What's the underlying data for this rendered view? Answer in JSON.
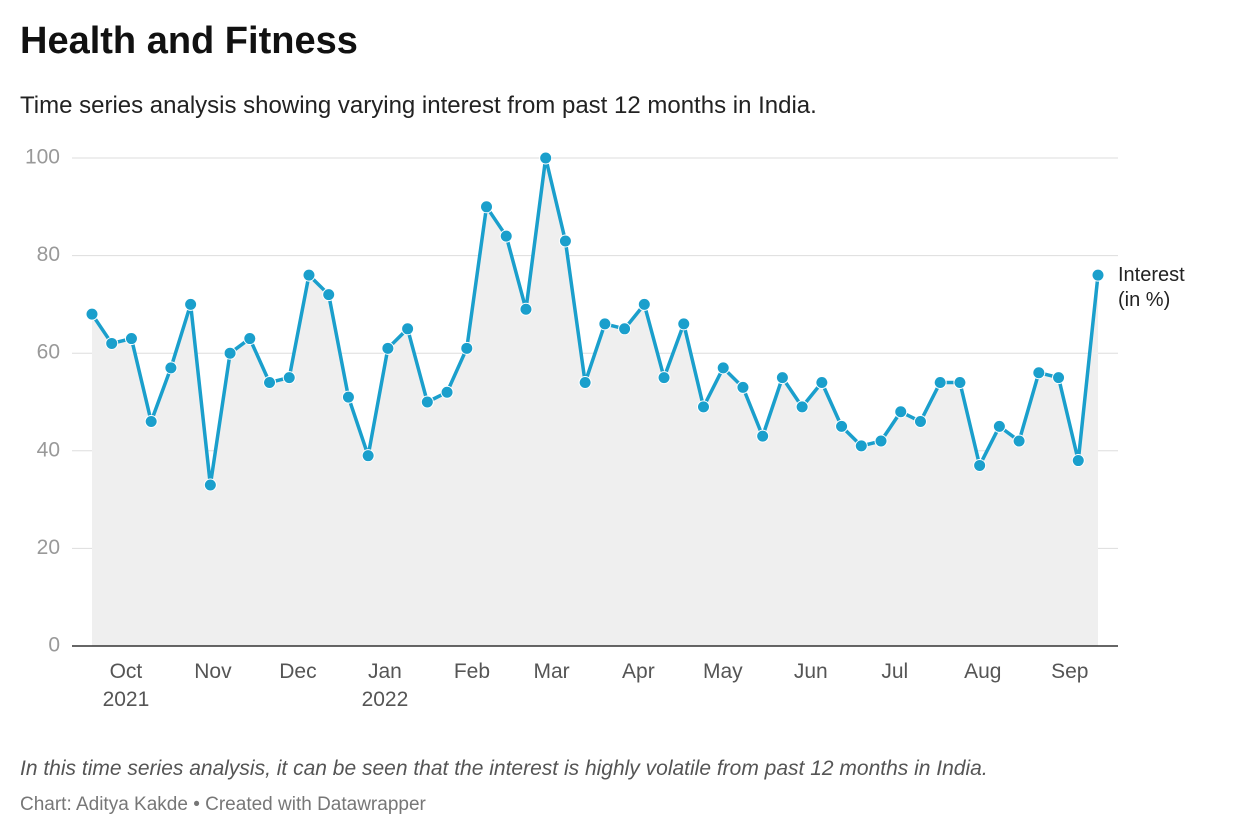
{
  "chart_data": {
    "type": "line",
    "title": "Health and Fitness",
    "subtitle": "Time series analysis showing varying interest from past 12 months in India.",
    "note": "In this time series analysis, it can be seen that the interest is highly volatile from past 12 months in India.",
    "credit": "Chart: Aditya Kakde • Created with Datawrapper",
    "categories": [
      null,
      null,
      null,
      null,
      null,
      null,
      null,
      null,
      null,
      null,
      null,
      null,
      null,
      null,
      null,
      null,
      null,
      null,
      null,
      null,
      null,
      null,
      null,
      null,
      null,
      null,
      null,
      null,
      null,
      null,
      null,
      null,
      null,
      null,
      null,
      null,
      null,
      null,
      null,
      null,
      null,
      null,
      null,
      null,
      null,
      null,
      null,
      null,
      null,
      null,
      null,
      null
    ],
    "series": [
      {
        "name": "Interest (in %)",
        "color": "#1a9fcc",
        "values": [
          68,
          62,
          63,
          46,
          57,
          70,
          33,
          60,
          63,
          54,
          55,
          76,
          72,
          51,
          39,
          61,
          65,
          50,
          52,
          61,
          90,
          84,
          69,
          100,
          83,
          54,
          66,
          65,
          70,
          55,
          66,
          49,
          57,
          53,
          43,
          55,
          49,
          54,
          45,
          41,
          42,
          48,
          46,
          54,
          54,
          37,
          45,
          42,
          56,
          55,
          38,
          76
        ]
      }
    ],
    "ylim": [
      0,
      100
    ],
    "yticks": [
      0,
      20,
      40,
      60,
      80,
      100
    ],
    "grid": true,
    "xticks": [
      {
        "value": 1.72,
        "label": "Oct\n2021"
      },
      {
        "value": 6.13,
        "label": "Nov"
      },
      {
        "value": 10.44,
        "label": "Dec"
      },
      {
        "value": 14.85,
        "label": "Jan\n2022"
      },
      {
        "value": 19.26,
        "label": "Feb"
      },
      {
        "value": 23.3,
        "label": "Mar"
      },
      {
        "value": 27.7,
        "label": "Apr"
      },
      {
        "value": 31.98,
        "label": "May"
      },
      {
        "value": 36.44,
        "label": "Jun"
      },
      {
        "value": 40.7,
        "label": "Jul"
      },
      {
        "value": 45.16,
        "label": "Aug"
      },
      {
        "value": 49.57,
        "label": "Sep"
      }
    ]
  }
}
